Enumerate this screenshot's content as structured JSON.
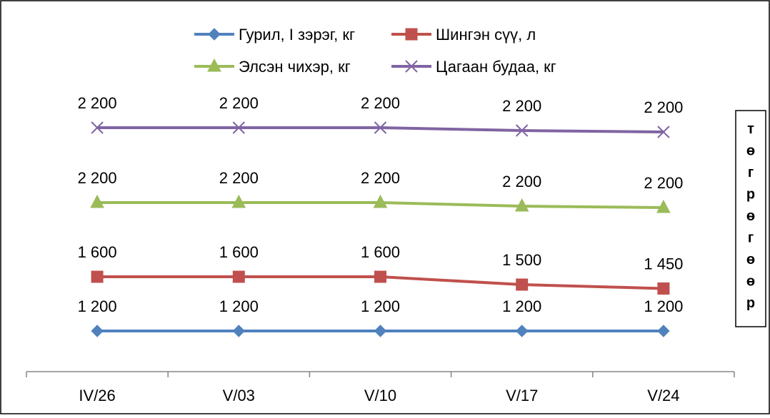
{
  "chart_data": {
    "type": "line",
    "categories": [
      "IV/26",
      "V/03",
      "V/10",
      "V/17",
      "V/24"
    ],
    "series": [
      {
        "name": "Гурил, I  зэрэг, кг",
        "color": "#4F81BD",
        "marker": "diamond",
        "values": [
          1200,
          1200,
          1200,
          1200,
          1200
        ],
        "labels": [
          "1 200",
          "1 200",
          "1 200",
          "1 200",
          "1 200"
        ]
      },
      {
        "name": "Шингэн сүү, л",
        "color": "#C0504D",
        "marker": "square",
        "values": [
          1600,
          1600,
          1600,
          1500,
          1450
        ],
        "labels": [
          "1 600",
          "1 600",
          "1 600",
          "1 500",
          "1 450"
        ]
      },
      {
        "name": "Элсэн чихэр, кг",
        "color": "#9BBB59",
        "marker": "triangle",
        "values": [
          2200,
          2200,
          2200,
          2200,
          2200
        ],
        "labels": [
          "2 200",
          "2 200",
          "2 200",
          "2 200",
          "2 200"
        ]
      },
      {
        "name": "Цагаан будаа, кг",
        "color": "#8064A2",
        "marker": "cross",
        "values": [
          2200,
          2200,
          2200,
          2200,
          2200
        ],
        "labels": [
          "2 200",
          "2 200",
          "2 200",
          "2 200",
          "2 200"
        ]
      }
    ],
    "unit_label": [
      "т",
      "ө",
      "г",
      "р",
      "ө",
      "г",
      "ө",
      "ө",
      "р"
    ],
    "grid": false,
    "legend_position": "top"
  }
}
